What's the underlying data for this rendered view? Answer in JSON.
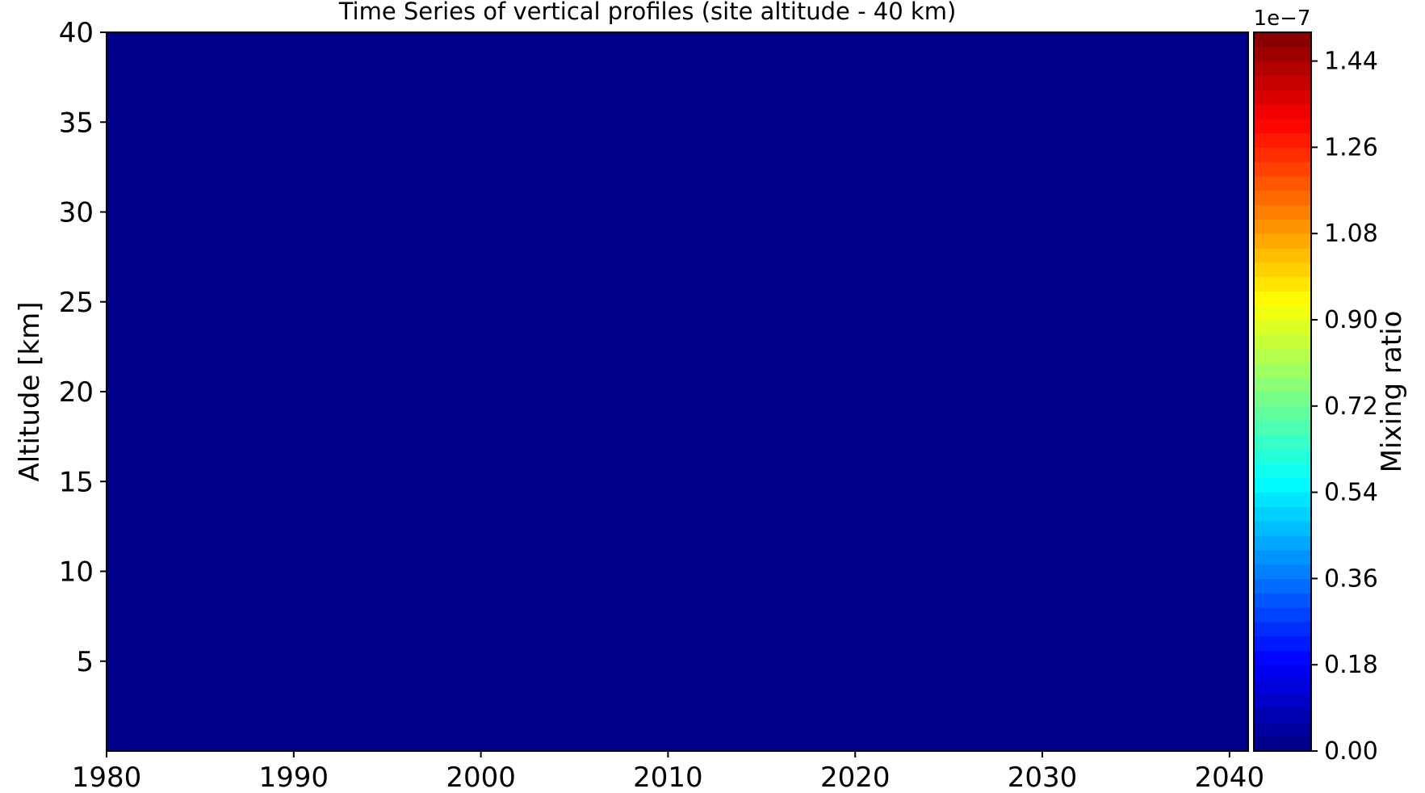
{
  "chart_data": {
    "type": "heatmap",
    "title": "Time Series of vertical profiles (site altitude - 40 km)",
    "xlabel": "",
    "ylabel": "Altitude [km]",
    "xlim": [
      1980,
      2041
    ],
    "ylim": [
      0,
      40
    ],
    "x_ticks": [
      1980,
      1990,
      2000,
      2010,
      2020,
      2030,
      2040
    ],
    "y_ticks": [
      5,
      10,
      15,
      20,
      25,
      30,
      35,
      40
    ],
    "field_value": 0.0,
    "grid": false,
    "colorbar": {
      "label": "Mixing ratio",
      "offset_text": "1e−7",
      "range": [
        0.0,
        1.5
      ],
      "levels": 50,
      "ticks": [
        "0.00",
        "0.18",
        "0.36",
        "0.54",
        "0.72",
        "0.90",
        "1.08",
        "1.26",
        "1.44"
      ],
      "colormap": "jet"
    }
  }
}
